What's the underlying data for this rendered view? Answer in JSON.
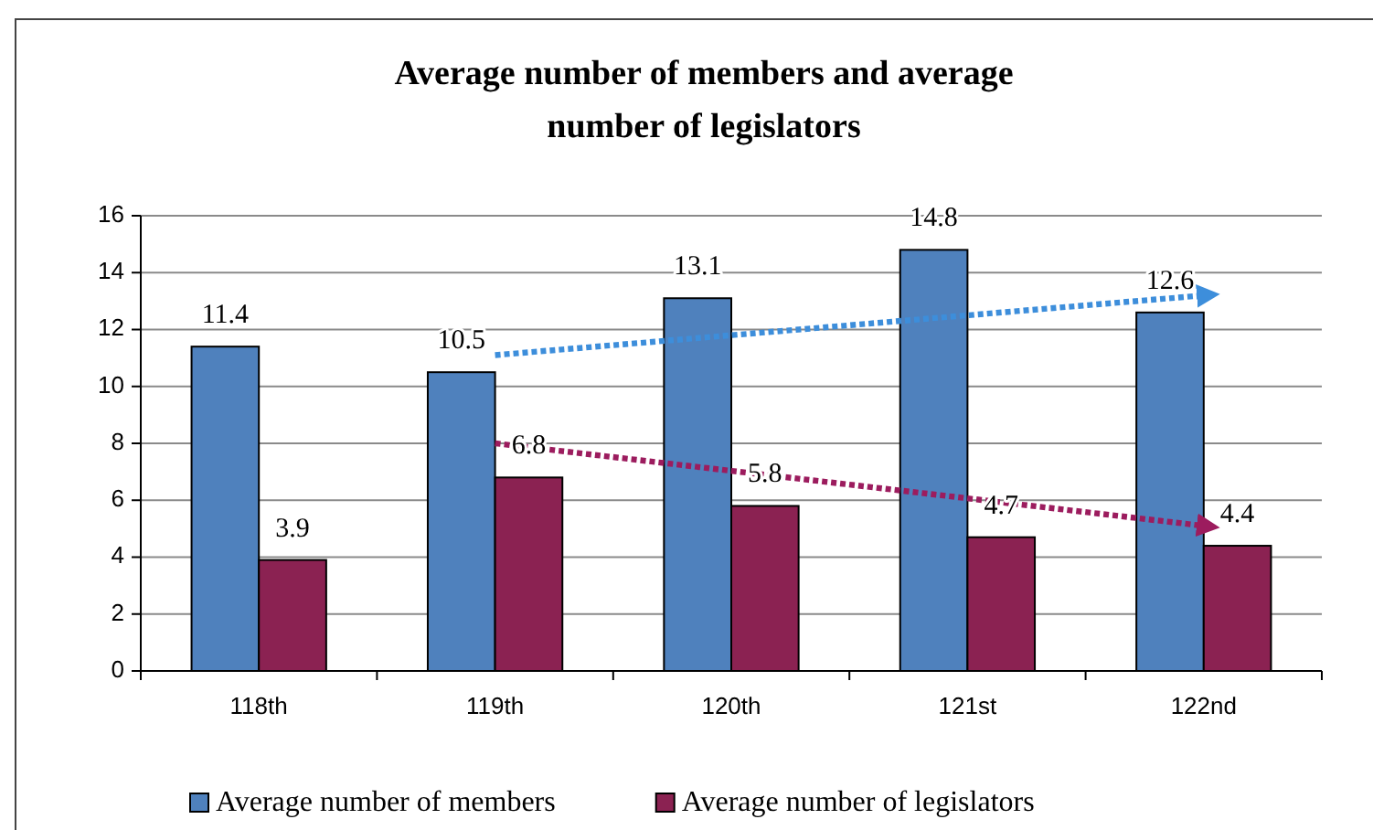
{
  "chart_data": {
    "type": "bar",
    "title": "Average number of members and average number of legislators",
    "categories": [
      "118th",
      "119th",
      "120th",
      "121st",
      "122nd"
    ],
    "series": [
      {
        "name": "Average number of members",
        "color": "#4f81bd",
        "values": [
          11.4,
          10.5,
          13.1,
          14.8,
          12.6
        ],
        "value_labels": [
          "11.4",
          "10.5",
          "13.1",
          "14.8",
          "12.6"
        ]
      },
      {
        "name": "Average number of legislators",
        "color": "#8b2252",
        "values": [
          3.9,
          6.8,
          5.8,
          4.7,
          4.4
        ],
        "value_labels": [
          "3.9",
          "6.8",
          "5.8",
          "4.7",
          "4.4"
        ]
      },
      {
        "type": "line",
        "color": "#3d8edb",
        "x": [
          "119th",
          "122nd"
        ],
        "values": [
          11.1,
          13.2
        ],
        "line_style": "dotted"
      },
      {
        "type": "line",
        "color": "#9c1c5e",
        "x": [
          "119th",
          "122nd"
        ],
        "values": [
          8.0,
          5.1
        ],
        "line_style": "dotted"
      }
    ],
    "ylim": [
      0,
      16
    ],
    "yticks": [
      0,
      2,
      4,
      6,
      8,
      10,
      12,
      14,
      16
    ],
    "grid": "y",
    "legend": "bottom"
  }
}
